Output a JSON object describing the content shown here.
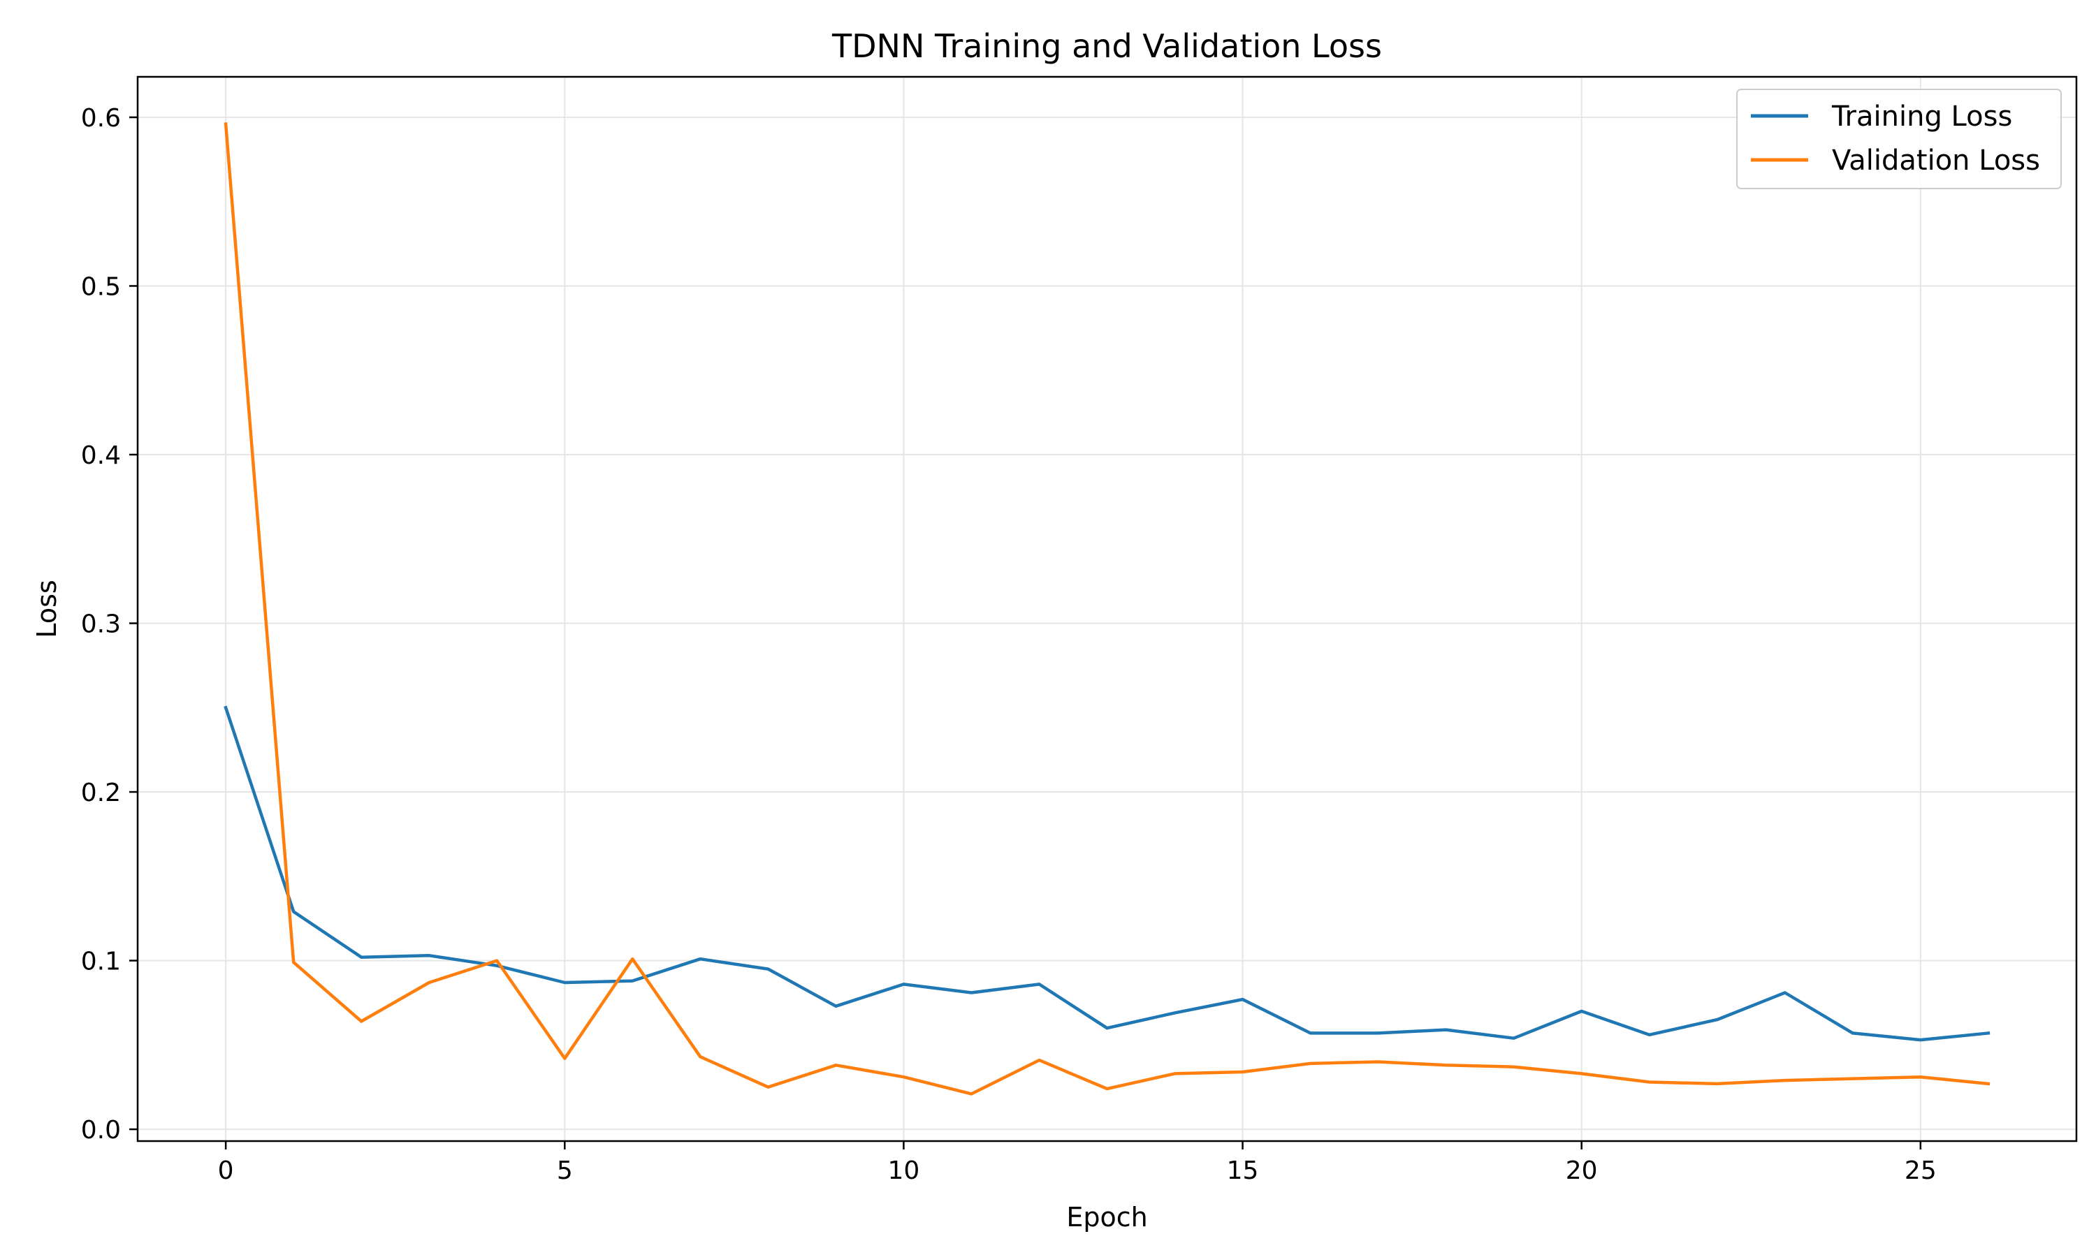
{
  "chart_data": {
    "type": "line",
    "title": "TDNN Training and Validation Loss",
    "xlabel": "Epoch",
    "ylabel": "Loss",
    "xlim": [
      -1.3,
      27.3
    ],
    "ylim": [
      -0.007,
      0.624
    ],
    "xticks": [
      0,
      5,
      10,
      15,
      20,
      25
    ],
    "xtick_labels": [
      "0",
      "5",
      "10",
      "15",
      "20",
      "25"
    ],
    "yticks": [
      0.0,
      0.1,
      0.2,
      0.3,
      0.4,
      0.5,
      0.6
    ],
    "ytick_labels": [
      "0.0",
      "0.1",
      "0.2",
      "0.3",
      "0.4",
      "0.5",
      "0.6"
    ],
    "grid": true,
    "legend_position": "top-right",
    "x": [
      0,
      1,
      2,
      3,
      4,
      5,
      6,
      7,
      8,
      9,
      10,
      11,
      12,
      13,
      14,
      15,
      16,
      17,
      18,
      19,
      20,
      21,
      22,
      23,
      24,
      25,
      26
    ],
    "series": [
      {
        "name": "Training Loss",
        "color": "#1f77b4",
        "values": [
          0.25,
          0.129,
          0.102,
          0.103,
          0.097,
          0.087,
          0.088,
          0.101,
          0.095,
          0.073,
          0.086,
          0.081,
          0.086,
          0.06,
          0.069,
          0.077,
          0.057,
          0.057,
          0.059,
          0.054,
          0.07,
          0.056,
          0.065,
          0.081,
          0.057,
          0.053,
          0.057
        ]
      },
      {
        "name": "Validation Loss",
        "color": "#ff7f0e",
        "values": [
          0.596,
          0.099,
          0.064,
          0.087,
          0.1,
          0.042,
          0.101,
          0.043,
          0.025,
          0.038,
          0.031,
          0.021,
          0.041,
          0.024,
          0.033,
          0.034,
          0.039,
          0.04,
          0.038,
          0.037,
          0.033,
          0.028,
          0.027,
          0.029,
          0.03,
          0.031,
          0.027
        ]
      }
    ]
  }
}
